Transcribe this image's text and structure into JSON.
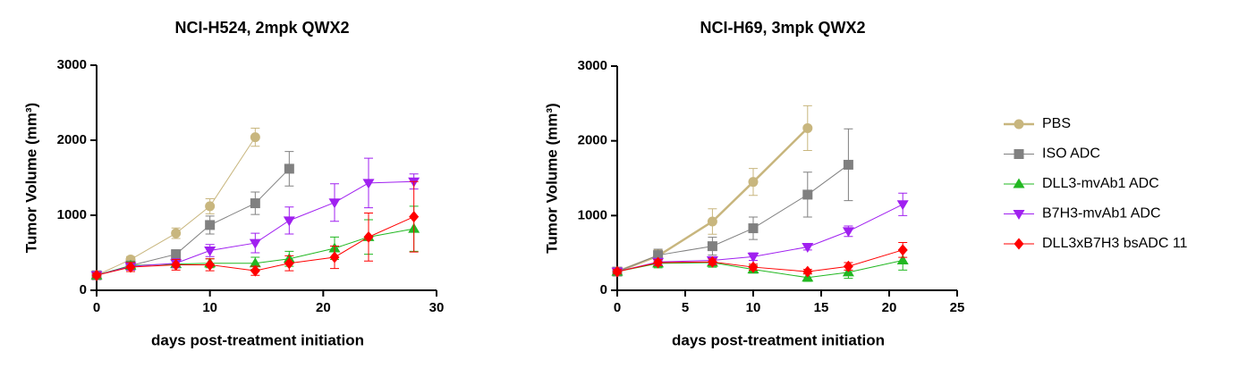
{
  "chart_data": [
    {
      "type": "line",
      "title": "NCI-H524, 2mpk QWX2",
      "xlabel": "days post-treatment initiation",
      "ylabel": "Tumor Volume (mm³)",
      "xlim": [
        0,
        30
      ],
      "xticks": [
        0,
        10,
        20,
        30
      ],
      "ylim": [
        0,
        3000
      ],
      "yticks": [
        0,
        1000,
        2000,
        3000
      ],
      "series": [
        {
          "color": "#c8b67e",
          "marker": "circle",
          "x": [
            0,
            3,
            7,
            10,
            14
          ],
          "values": [
            200,
            410,
            760,
            1120,
            2040
          ],
          "errors": [
            50,
            40,
            70,
            100,
            120
          ]
        },
        {
          "color": "#808080",
          "marker": "square",
          "x": [
            0,
            3,
            7,
            10,
            14,
            17
          ],
          "values": [
            200,
            330,
            480,
            870,
            1160,
            1620
          ],
          "errors": [
            30,
            40,
            60,
            120,
            150,
            230
          ]
        },
        {
          "color": "#22b822",
          "marker": "triangle-up",
          "x": [
            0,
            3,
            7,
            10,
            14,
            17,
            21,
            24,
            28
          ],
          "values": [
            200,
            330,
            350,
            360,
            360,
            420,
            560,
            710,
            820
          ],
          "errors": [
            30,
            50,
            50,
            60,
            80,
            100,
            150,
            230,
            300
          ]
        },
        {
          "color": "#a020f0",
          "marker": "triangle-down",
          "x": [
            0,
            3,
            7,
            10,
            14,
            17,
            21,
            24,
            28
          ],
          "values": [
            200,
            320,
            360,
            530,
            630,
            930,
            1170,
            1430,
            1450
          ],
          "errors": [
            30,
            50,
            60,
            80,
            130,
            180,
            250,
            330,
            100
          ]
        },
        {
          "color": "#ff0000",
          "marker": "diamond",
          "x": [
            0,
            3,
            7,
            10,
            14,
            17,
            21,
            24,
            28
          ],
          "values": [
            200,
            310,
            340,
            340,
            260,
            360,
            440,
            710,
            980
          ],
          "errors": [
            30,
            60,
            70,
            80,
            60,
            100,
            150,
            320,
            470
          ]
        }
      ]
    },
    {
      "type": "line",
      "title": "NCI-H69, 3mpk QWX2",
      "xlabel": "days post-treatment initiation",
      "ylabel": "Tumor Volume (mm³)",
      "xlim": [
        0,
        25
      ],
      "xticks": [
        0,
        5,
        10,
        15,
        20,
        25
      ],
      "ylim": [
        0,
        3000
      ],
      "yticks": [
        0,
        1000,
        2000,
        3000
      ],
      "series": [
        {
          "name": "PBS",
          "color": "#c8b67e",
          "marker": "circle",
          "x": [
            0,
            3,
            7,
            10,
            14
          ],
          "values": [
            250,
            460,
            920,
            1450,
            2170
          ],
          "errors": [
            30,
            80,
            170,
            180,
            300
          ]
        },
        {
          "name": "ISO ADC",
          "color": "#808080",
          "marker": "square",
          "x": [
            0,
            3,
            7,
            10,
            14,
            17
          ],
          "values": [
            250,
            470,
            590,
            830,
            1280,
            1680
          ],
          "errors": [
            30,
            80,
            120,
            150,
            300,
            480
          ]
        },
        {
          "name": "DLL3-mvAb1 ADC",
          "color": "#22b822",
          "marker": "triangle-up",
          "x": [
            0,
            3,
            7,
            10,
            14,
            17,
            21
          ],
          "values": [
            250,
            360,
            370,
            280,
            170,
            240,
            400
          ],
          "errors": [
            30,
            60,
            60,
            50,
            50,
            80,
            130
          ]
        },
        {
          "name": "B7H3-mvAb1 ADC",
          "color": "#a020f0",
          "marker": "triangle-down",
          "x": [
            0,
            3,
            7,
            10,
            14,
            17,
            21
          ],
          "values": [
            250,
            380,
            400,
            450,
            580,
            790,
            1150
          ],
          "errors": [
            30,
            40,
            50,
            50,
            40,
            70,
            150
          ]
        },
        {
          "name": "DLL3xB7H3 bsADC 11",
          "color": "#ff0000",
          "marker": "diamond",
          "x": [
            0,
            3,
            7,
            10,
            14,
            17,
            21
          ],
          "values": [
            250,
            370,
            380,
            310,
            250,
            320,
            540
          ],
          "errors": [
            30,
            40,
            40,
            40,
            30,
            50,
            100
          ]
        }
      ]
    }
  ]
}
